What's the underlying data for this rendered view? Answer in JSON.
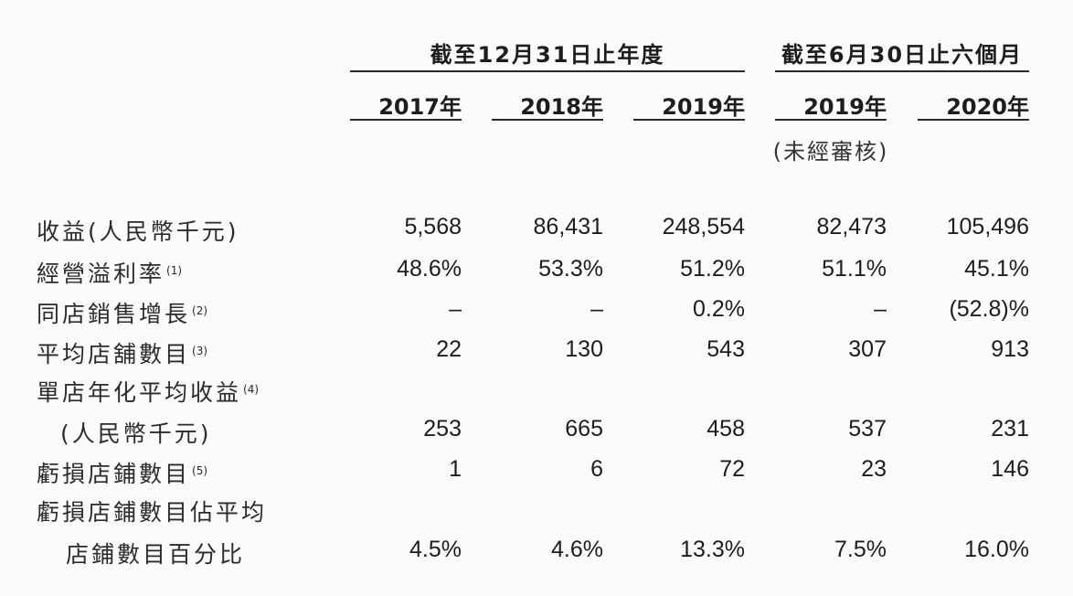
{
  "header": {
    "group_year_end": "截至12月31日止年度",
    "group_six_months": "截至6月30日止六個月",
    "years": [
      "2017年",
      "2018年",
      "2019年",
      "2019年",
      "2020年"
    ],
    "unaudited_note": "(未經審核)"
  },
  "rows": [
    {
      "label": "收益(人民幣千元)",
      "note": "",
      "values": [
        "5,568",
        "86,431",
        "248,554",
        "82,473",
        "105,496"
      ]
    },
    {
      "label": "經營溢利率",
      "note": "(1)",
      "values": [
        "48.6%",
        "53.3%",
        "51.2%",
        "51.1%",
        "45.1%"
      ]
    },
    {
      "label": "同店銷售增長",
      "note": "(2)",
      "values": [
        "–",
        "–",
        "0.2%",
        "–",
        "(52.8)%"
      ]
    },
    {
      "label": "平均店舖數目",
      "note": "(3)",
      "values": [
        "22",
        "130",
        "543",
        "307",
        "913"
      ]
    },
    {
      "label": "單店年化平均收益",
      "note": "(4)",
      "values": [
        "",
        "",
        "",
        "",
        ""
      ]
    },
    {
      "label": "(人民幣千元)",
      "note": "",
      "values": [
        "253",
        "665",
        "458",
        "537",
        "231"
      ]
    },
    {
      "label": "虧損店鋪數目",
      "note": "(5)",
      "values": [
        "1",
        "6",
        "72",
        "23",
        "146"
      ]
    },
    {
      "label": "虧損店鋪數目佔平均",
      "note": "",
      "values": [
        "",
        "",
        "",
        "",
        ""
      ]
    },
    {
      "label": "店鋪數目百分比",
      "note": "",
      "values": [
        "4.5%",
        "4.6%",
        "13.3%",
        "7.5%",
        "16.0%"
      ]
    }
  ]
}
